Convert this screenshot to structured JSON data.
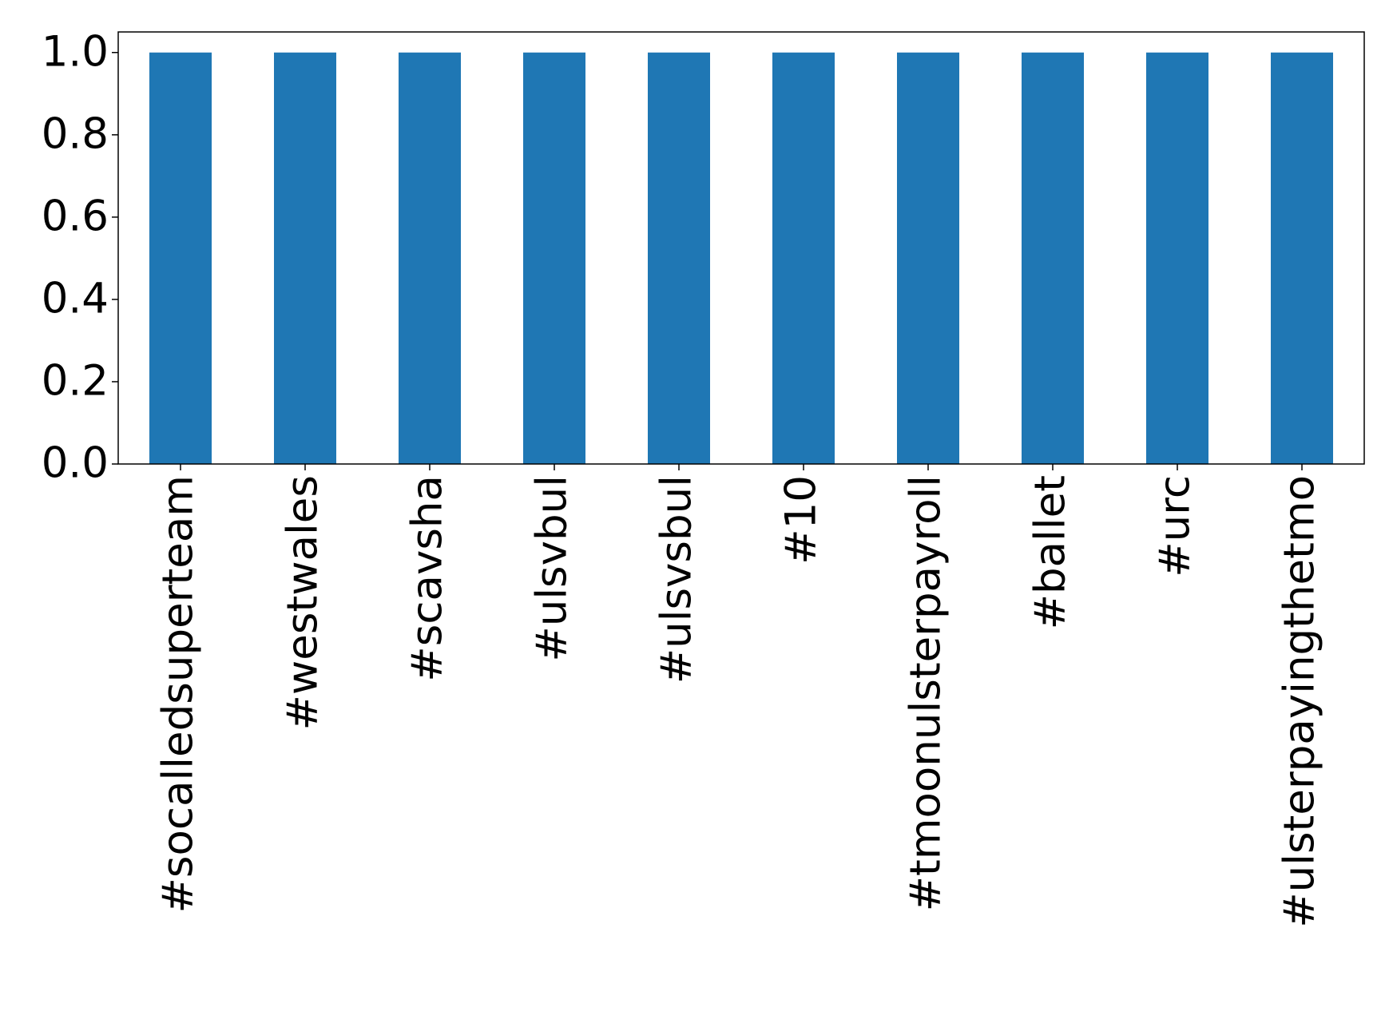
{
  "chart_data": {
    "type": "bar",
    "categories": [
      "#socalledsuperteam",
      "#westwales",
      "#scavsha",
      "#ulsvbul",
      "#ulsvsbul",
      "#10",
      "#tmoonulsterpayroll",
      "#ballet",
      "#urc",
      "#ulsterpayingthetmo"
    ],
    "values": [
      1,
      1,
      1,
      1,
      1,
      1,
      1,
      1,
      1,
      1
    ],
    "color": "#1f77b4",
    "ylim": [
      0,
      1.05
    ],
    "yticks": [
      {
        "value": 0,
        "label": "0.0"
      },
      0.2,
      0.4,
      0.6,
      0.8,
      {
        "value": 1,
        "label": "1.0"
      }
    ],
    "grid": false
  }
}
